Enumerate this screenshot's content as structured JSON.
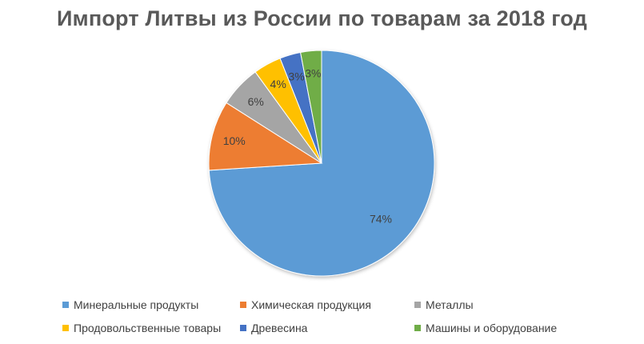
{
  "chart_data": {
    "type": "pie",
    "title": "Импорт Литвы из России по товарам за 2018 год",
    "series": [
      {
        "slices": [
          {
            "label": "Минеральные продукты",
            "value": 74,
            "data_label": "74%",
            "color": "#5B9BD5"
          },
          {
            "label": "Химическая продукция",
            "value": 10,
            "data_label": "10%",
            "color": "#ED7D31"
          },
          {
            "label": "Металлы",
            "value": 6,
            "data_label": "6%",
            "color": "#A5A5A5"
          },
          {
            "label": "Продовольственные товары",
            "value": 4,
            "data_label": "4%",
            "color": "#FFC000"
          },
          {
            "label": "Древесина",
            "value": 3,
            "data_label": "3%",
            "color": "#4472C4"
          },
          {
            "label": "Машины и оборудование",
            "value": 3,
            "data_label": "3%",
            "color": "#70AD47"
          }
        ]
      }
    ],
    "legend_position": "bottom"
  }
}
